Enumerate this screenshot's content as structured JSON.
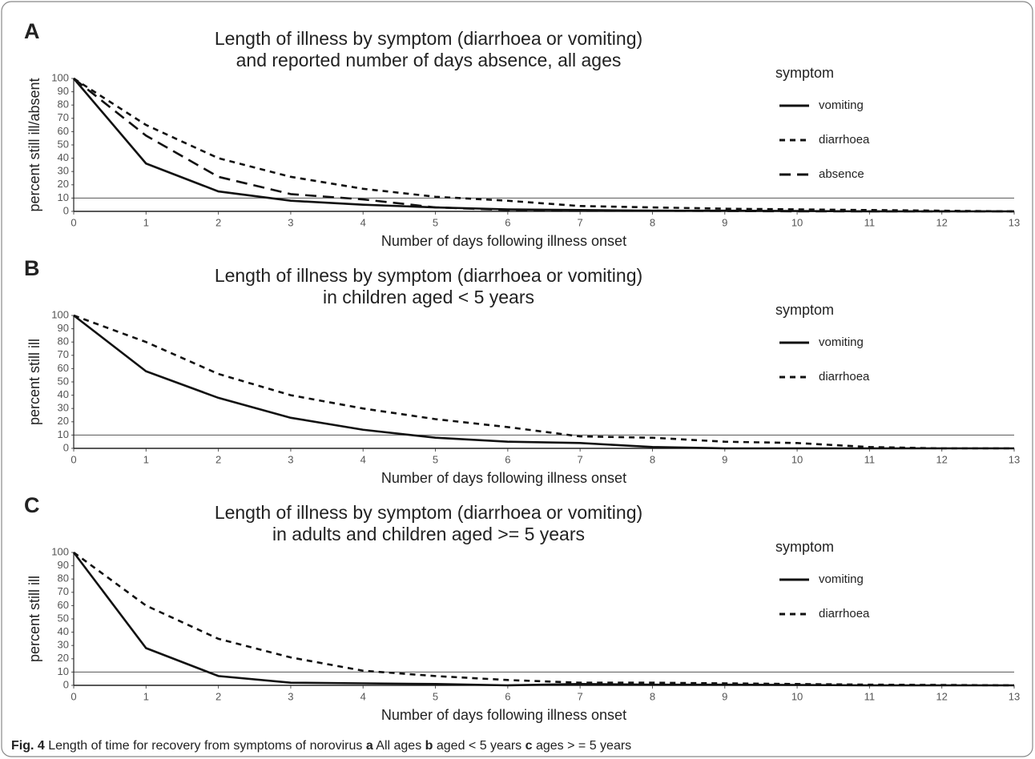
{
  "chart_data": [
    {
      "type": "line",
      "panel": "A",
      "title": [
        "Length of illness by symptom (diarrhoea or vomiting)",
        "and reported number of days absence, all ages"
      ],
      "ylabel": "percent still ill/absent",
      "xlabel": "Number of days following illness onset",
      "legend_title": "symptom",
      "hline": 10,
      "x": [
        0,
        1,
        2,
        3,
        4,
        5,
        6,
        7,
        8,
        9,
        10,
        11,
        12,
        13
      ],
      "xlim": [
        0,
        13
      ],
      "xticks": [
        0,
        1,
        2,
        3,
        4,
        5,
        6,
        7,
        8,
        9,
        10,
        11,
        12,
        13
      ],
      "ylim": [
        0,
        100
      ],
      "yticks": [
        0,
        10,
        20,
        30,
        40,
        50,
        60,
        70,
        80,
        90,
        100
      ],
      "series": [
        {
          "name": "vomiting",
          "color": "#111111",
          "dash": "solid",
          "values": [
            100,
            36,
            15,
            8,
            5,
            3,
            1.5,
            1,
            0.5,
            0.5,
            0.3,
            0,
            0,
            0
          ]
        },
        {
          "name": "diarrhoea",
          "color": "#111111",
          "dash": "dotted",
          "values": [
            100,
            65,
            40,
            26,
            17,
            11,
            8,
            4,
            3,
            2,
            1.5,
            1,
            0.5,
            0
          ]
        },
        {
          "name": "absence",
          "color": "#111111",
          "dash": "dashed",
          "values": [
            100,
            57,
            26,
            13,
            9,
            3,
            1,
            0.5,
            0.5,
            0.3,
            0,
            0,
            0,
            0
          ]
        }
      ]
    },
    {
      "type": "line",
      "panel": "B",
      "title": [
        "Length of illness by symptom (diarrhoea or vomiting)",
        "in children aged < 5 years"
      ],
      "ylabel": "percent still ill",
      "xlabel": "Number of days following illness onset",
      "legend_title": "symptom",
      "hline": 10,
      "x": [
        0,
        1,
        2,
        3,
        4,
        5,
        6,
        7,
        8,
        9,
        10,
        11,
        12,
        13
      ],
      "xlim": [
        0,
        13
      ],
      "xticks": [
        0,
        1,
        2,
        3,
        4,
        5,
        6,
        7,
        8,
        9,
        10,
        11,
        12,
        13
      ],
      "ylim": [
        0,
        100
      ],
      "yticks": [
        0,
        10,
        20,
        30,
        40,
        50,
        60,
        70,
        80,
        90,
        100
      ],
      "series": [
        {
          "name": "vomiting",
          "color": "#111111",
          "dash": "solid",
          "values": [
            100,
            58,
            38,
            23,
            14,
            8,
            5,
            4,
            1,
            0,
            0,
            0,
            0,
            0
          ]
        },
        {
          "name": "diarrhoea",
          "color": "#111111",
          "dash": "dotted",
          "values": [
            100,
            80,
            56,
            40,
            30,
            22,
            16,
            9,
            8,
            5,
            4,
            1,
            0,
            0
          ]
        }
      ]
    },
    {
      "type": "line",
      "panel": "C",
      "title": [
        "Length of illness by symptom (diarrhoea or vomiting)",
        "in adults and children aged >= 5 years"
      ],
      "ylabel": "percent still ill",
      "xlabel": "Number of days following illness onset",
      "legend_title": "symptom",
      "hline": 10,
      "x": [
        0,
        1,
        2,
        3,
        4,
        5,
        6,
        7,
        8,
        9,
        10,
        11,
        12,
        13
      ],
      "xlim": [
        0,
        13
      ],
      "xticks": [
        0,
        1,
        2,
        3,
        4,
        5,
        6,
        7,
        8,
        9,
        10,
        11,
        12,
        13
      ],
      "ylim": [
        0,
        100
      ],
      "yticks": [
        0,
        10,
        20,
        30,
        40,
        50,
        60,
        70,
        80,
        90,
        100
      ],
      "series": [
        {
          "name": "vomiting",
          "color": "#111111",
          "dash": "solid",
          "values": [
            100,
            28,
            7,
            2,
            1.5,
            1,
            0,
            1,
            0.5,
            0.5,
            0.3,
            0,
            0,
            0
          ]
        },
        {
          "name": "diarrhoea",
          "color": "#111111",
          "dash": "dotted",
          "values": [
            100,
            60,
            35,
            21,
            11,
            7,
            4,
            2,
            2,
            1.5,
            1,
            0.5,
            0.3,
            0
          ]
        }
      ]
    }
  ],
  "caption": [
    {
      "text": "Fig. 4",
      "bold": true
    },
    {
      "text": " Length of time for recovery from symptoms of norovirus ",
      "bold": false
    },
    {
      "text": "a",
      "bold": true
    },
    {
      "text": " All ages ",
      "bold": false
    },
    {
      "text": "b",
      "bold": true
    },
    {
      "text": " aged < 5 years ",
      "bold": false
    },
    {
      "text": "c",
      "bold": true
    },
    {
      "text": " ages > = 5 years",
      "bold": false
    }
  ]
}
